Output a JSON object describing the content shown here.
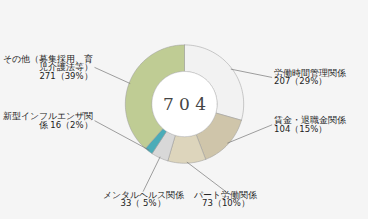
{
  "chart_data": {
    "type": "pie",
    "categories": [
      "労働時間管理関係\n207（29%）",
      "賃金・退職金関係\n104（15%）",
      "パート労働関係\n73（10%）",
      "メンタルヘルス関係\n33（ 5%）",
      "新型インフルエンザ関\n係 16（2%）",
      "その他（募集採用、育\n児介護法等）\n271（39%）"
    ],
    "values": [
      207,
      104,
      73,
      33,
      16,
      271
    ],
    "colors": [
      "#f2f2f2",
      "#cfc5aa",
      "#ddd5bc",
      "#d8d8d8",
      "#4aacb8",
      "#bfcc94"
    ],
    "annotations": [
      "7 0 4"
    ],
    "tick_labels": false
  }
}
